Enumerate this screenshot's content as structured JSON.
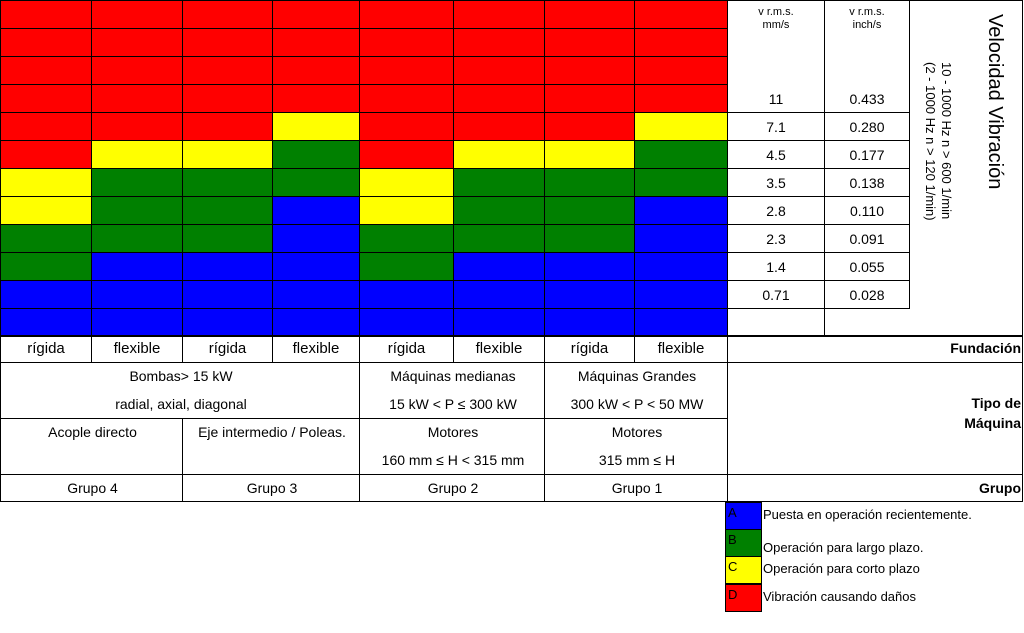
{
  "chart_data": {
    "type": "heatmap",
    "title": "Velocidad Vibración",
    "subtitle_1": "10 - 1000 Hz  n > 600 1/min",
    "subtitle_2": "(2 - 1000 Hz  n > 120 1/min)",
    "header_mm": "v r.m.s.\nmm/s",
    "header_inch": "v r.m.s.\ninch/s",
    "thresholds_mm": [
      "11",
      "7.1",
      "4.5",
      "3.5",
      "2.8",
      "2.3",
      "1.4",
      "0.71"
    ],
    "thresholds_inch": [
      "0.433",
      "0.280",
      "0.177",
      "0.138",
      "0.110",
      "0.091",
      "0.055",
      "0.028"
    ],
    "columns": [
      "rígida",
      "flexible",
      "rígida",
      "flexible",
      "rígida",
      "flexible",
      "rígida",
      "flexible"
    ],
    "rows_top_to_bottom": [
      [
        "D",
        "D",
        "D",
        "D",
        "D",
        "D",
        "D",
        "D"
      ],
      [
        "D",
        "D",
        "D",
        "D",
        "D",
        "D",
        "D",
        "D"
      ],
      [
        "D",
        "D",
        "D",
        "D",
        "D",
        "D",
        "D",
        "D"
      ],
      [
        "D",
        "D",
        "D",
        "D",
        "D",
        "D",
        "D",
        "D"
      ],
      [
        "D",
        "D",
        "D",
        "C",
        "D",
        "D",
        "D",
        "C"
      ],
      [
        "D",
        "C",
        "C",
        "B",
        "D",
        "C",
        "C",
        "B"
      ],
      [
        "C",
        "B",
        "B",
        "B",
        "C",
        "B",
        "B",
        "B"
      ],
      [
        "C",
        "B",
        "B",
        "A",
        "C",
        "B",
        "B",
        "A"
      ],
      [
        "B",
        "B",
        "B",
        "A",
        "B",
        "B",
        "B",
        "A"
      ],
      [
        "B",
        "A",
        "A",
        "A",
        "B",
        "A",
        "A",
        "A"
      ],
      [
        "A",
        "A",
        "A",
        "A",
        "A",
        "A",
        "A",
        "A"
      ],
      [
        "A",
        "A",
        "A",
        "A",
        "A",
        "A",
        "A",
        "A"
      ]
    ],
    "zone_colors": {
      "A": "#0000ff",
      "B": "#008000",
      "C": "#ffff00",
      "D": "#ff0000"
    }
  },
  "labels": {
    "fundacion": "Fundación",
    "tipo_de": "Tipo de",
    "maquina": "Máquina",
    "grupo": "Grupo"
  },
  "machines": {
    "bombas_1": "Bombas> 15 kW",
    "bombas_2": "radial, axial, diagonal",
    "medianas_1": "Máquinas medianas",
    "medianas_2": "15 kW < P ≤ 300 kW",
    "grandes_1": "Máquinas Grandes",
    "grandes_2": "300 kW < P < 50 MW",
    "acople": "Acople directo",
    "eje": "Eje intermedio / Poleas.",
    "motores_m_1": "Motores",
    "motores_m_2": "160 mm ≤ H < 315 mm",
    "motores_g_1": "Motores",
    "motores_g_2": "315 mm ≤ H"
  },
  "groups": [
    "Grupo 4",
    "Grupo 3",
    "Grupo 2",
    "Grupo 1"
  ],
  "legend": [
    {
      "key": "A",
      "text": "Puesta en operación recientemente.",
      "color": "#0000ff"
    },
    {
      "key": "B",
      "text": "Operación  para largo plazo.",
      "color": "#008000"
    },
    {
      "key": "C",
      "text": "Operación para corto plazo",
      "color": "#ffff00"
    },
    {
      "key": "D",
      "text": "Vibración causando daños",
      "color": "#ff0000"
    }
  ]
}
